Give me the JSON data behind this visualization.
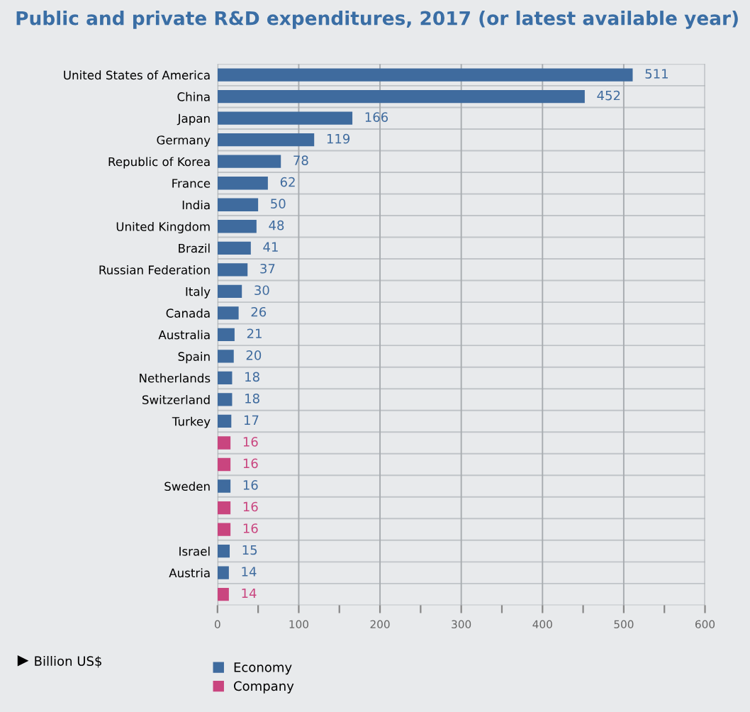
{
  "chart_data": {
    "type": "bar",
    "orientation": "horizontal",
    "title": "Public and private R&D expenditures, 2017 (or latest available year)",
    "xlabel": "Billion US$",
    "categories": [
      "United States of America",
      "China",
      "Japan",
      "Germany",
      "Republic of Korea",
      "France",
      "India",
      "United Kingdom",
      "Brazil",
      "Russian Federation",
      "Italy",
      "Canada",
      "Australia",
      "Spain",
      "Netherlands",
      "Switzerland",
      "Turkey",
      null,
      null,
      "Sweden",
      null,
      null,
      "Israel",
      "Austria",
      null
    ],
    "series": [
      {
        "name": "Economy",
        "color": "#3f6b9e",
        "values": [
          511,
          452,
          166,
          119,
          78,
          62,
          50,
          48,
          41,
          37,
          30,
          26,
          21,
          20,
          18,
          18,
          17,
          null,
          null,
          16,
          null,
          null,
          15,
          14,
          null
        ]
      },
      {
        "name": "Company",
        "color": "#c9457f",
        "values": [
          null,
          null,
          null,
          null,
          null,
          null,
          null,
          null,
          null,
          null,
          null,
          null,
          null,
          null,
          null,
          null,
          null,
          16,
          16,
          null,
          16,
          16,
          null,
          null,
          14
        ]
      }
    ],
    "xlim": [
      0,
      600
    ],
    "xticks": [
      0,
      {
        "value": 50,
        "label": null
      },
      100,
      {
        "value": 150,
        "label": null
      },
      200,
      {
        "value": 250,
        "label": null
      },
      300,
      {
        "value": 350,
        "label": null
      },
      400,
      {
        "value": 450,
        "label": null
      },
      500,
      {
        "value": 550,
        "label": null
      },
      600
    ],
    "grid": "x",
    "legend": "bottom",
    "data_labels": true
  }
}
